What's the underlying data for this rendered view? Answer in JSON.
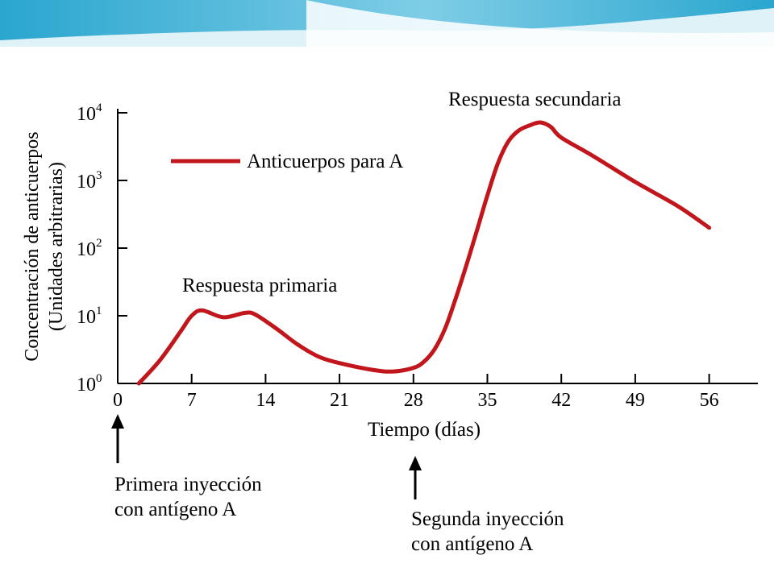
{
  "chart_data": {
    "type": "line",
    "ylabel": [
      "Concentración de anticuerpos",
      "(Unidades arbitrarias)"
    ],
    "xlabel": "Tiempo (días)",
    "x_ticks": [
      "0",
      "7",
      "14",
      "21",
      "28",
      "35",
      "42",
      "49",
      "56"
    ],
    "y_ticks": [
      {
        "base": "10",
        "exp": "0"
      },
      {
        "base": "10",
        "exp": "1"
      },
      {
        "base": "10",
        "exp": "2"
      },
      {
        "base": "10",
        "exp": "3"
      },
      {
        "base": "10",
        "exp": "4"
      }
    ],
    "xlim": [
      0,
      60
    ],
    "ylim": [
      1,
      10000
    ],
    "y_scale": "log",
    "legend": {
      "label": "Anticuerpos para A",
      "color": "#c0161c",
      "position": "top-left"
    },
    "series": [
      {
        "name": "Anticuerpos para A",
        "color": "#c0161c",
        "x": [
          2,
          4,
          6,
          7,
          8,
          10,
          12,
          13,
          15,
          17,
          19,
          21,
          24,
          26,
          28,
          29,
          30,
          31,
          32,
          33,
          34,
          35,
          36,
          37,
          38,
          39,
          40,
          41,
          42,
          45,
          49,
          53,
          56
        ],
        "y": [
          1,
          2.2,
          6,
          10,
          12,
          9.5,
          11,
          10.5,
          6.5,
          3.8,
          2.5,
          2.0,
          1.6,
          1.5,
          1.7,
          2.1,
          3.2,
          6.5,
          18,
          55,
          180,
          600,
          1800,
          3800,
          5500,
          6500,
          7200,
          6200,
          4300,
          2300,
          950,
          420,
          200
        ]
      }
    ],
    "annotations": [
      {
        "text": "Respuesta primaria"
      },
      {
        "text": "Respuesta secundaria"
      }
    ]
  },
  "arrows": {
    "first": {
      "x": 0,
      "lines": [
        "Primera inyección",
        "con antígeno A"
      ]
    },
    "second": {
      "x": 28,
      "lines": [
        "Segunda inyección",
        "con antígeno A"
      ]
    }
  },
  "header_colors": {
    "top": "#3bb6d8",
    "light": "#dff2f8"
  }
}
